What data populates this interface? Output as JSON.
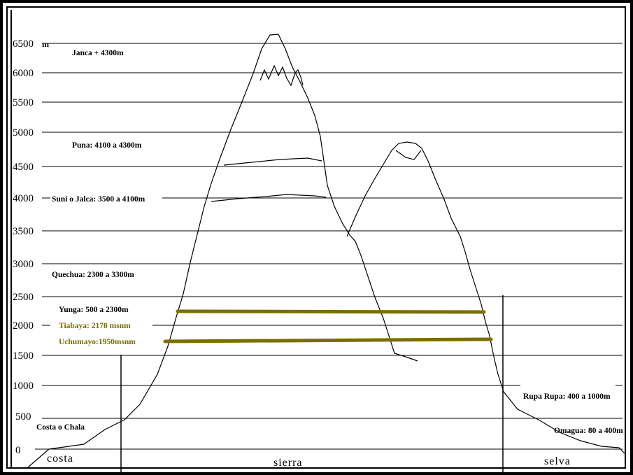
{
  "axis": {
    "unit": "m",
    "ticks": [
      "6500",
      "6000",
      "5500",
      "5000",
      "4500",
      "4000",
      "3500",
      "3000",
      "2500",
      "2000",
      "1500",
      "1000",
      "500",
      "0"
    ]
  },
  "zones": {
    "janca": "Janca + 4300m",
    "puna": "Puna: 4100 a 4300m",
    "suni": "Suni o Jalca: 3500 a 4100m",
    "quechua": "Quechua: 2300 a 3300m",
    "yunga": "Yunga: 500 a 2300m",
    "tiabaya": "Tiabaya: 2178 msnm",
    "uchumayo": "Uchumayo:1950msnm",
    "costa_chala": "Costa o Chala",
    "rupa_rupa": "Rupa Rupa: 400 a 1000m",
    "omagua": "Omagua: 80 a 400m"
  },
  "regions": {
    "costa": "costa",
    "sierra": "sierra",
    "selva": "selva"
  },
  "colors": {
    "marker": "#7a6e00",
    "line": "#000000",
    "frame": "#000000"
  }
}
